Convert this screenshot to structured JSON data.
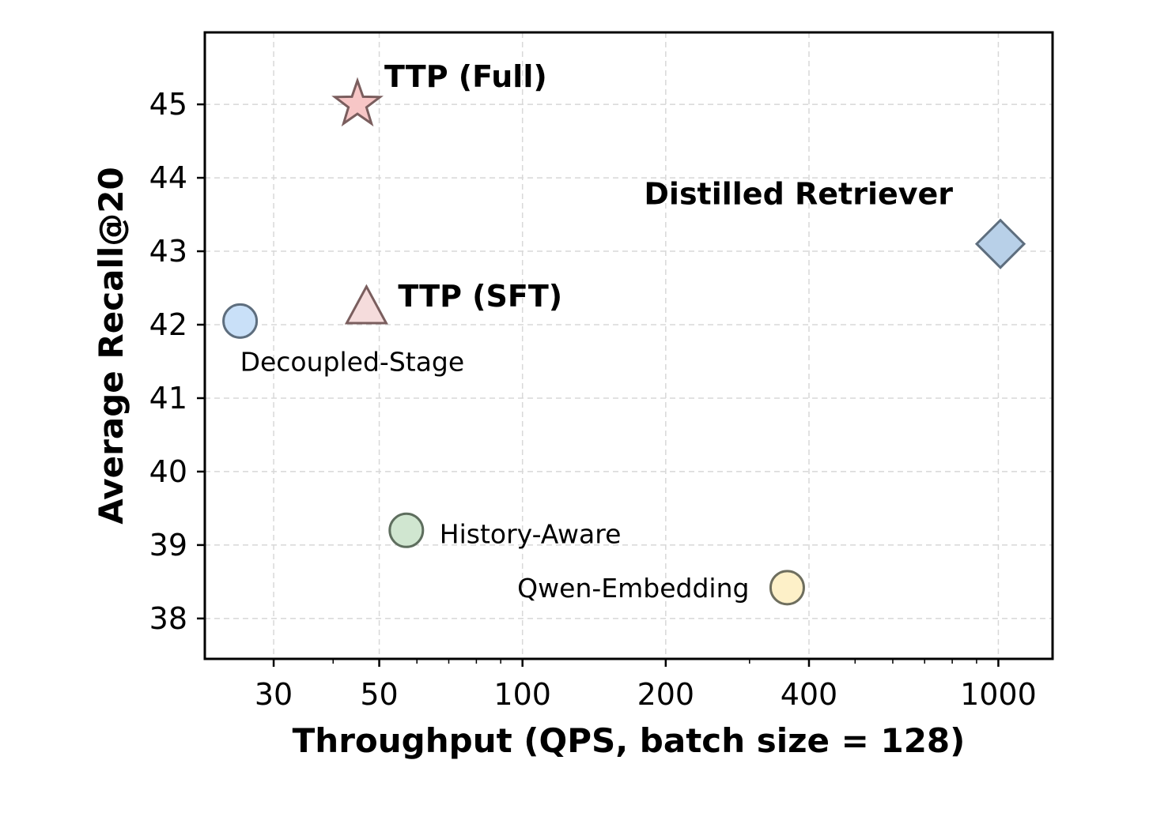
{
  "chart_data": {
    "type": "scatter",
    "title": "",
    "xlabel": "Throughput (QPS, batch size = 128)",
    "ylabel": "Average Recall@20",
    "x_scale": "log",
    "xlim": [
      21.5,
      1300
    ],
    "ylim": [
      37.45,
      45.98
    ],
    "x_ticks": [
      30,
      50,
      100,
      200,
      400,
      1000
    ],
    "x_tick_labels": [
      "30",
      "50",
      "100",
      "200",
      "400",
      "1000"
    ],
    "y_ticks": [
      38,
      39,
      40,
      41,
      42,
      43,
      44,
      45
    ],
    "y_tick_labels": [
      "38",
      "39",
      "40",
      "41",
      "42",
      "43",
      "44",
      "45"
    ],
    "grid": true,
    "points": [
      {
        "label": "TTP (Full)",
        "x": 45,
        "y": 45.0,
        "marker": "star",
        "color": "#f7c6c6",
        "edge": "#7a5e5e",
        "label_bold": true
      },
      {
        "label": "TTP (SFT)",
        "x": 47,
        "y": 42.25,
        "marker": "triangle",
        "color": "#f5dcdc",
        "edge": "#7a5e5e",
        "label_bold": true
      },
      {
        "label": "Distilled Retriever",
        "x": 1010,
        "y": 43.1,
        "marker": "diamond",
        "color": "#b8d0e8",
        "edge": "#5e6e7e",
        "label_bold": true
      },
      {
        "label": "Decoupled-Stage",
        "x": 25.5,
        "y": 42.05,
        "marker": "circle",
        "color": "#c9e0f8",
        "edge": "#5e6e7e",
        "label_bold": false
      },
      {
        "label": "History-Aware",
        "x": 57,
        "y": 39.2,
        "marker": "circle",
        "color": "#d0e6d0",
        "edge": "#5e6e5e",
        "label_bold": false
      },
      {
        "label": "Qwen-Embedding",
        "x": 360,
        "y": 38.42,
        "marker": "circle",
        "color": "#fdf0c8",
        "edge": "#6e6e5e",
        "label_bold": false
      }
    ]
  }
}
